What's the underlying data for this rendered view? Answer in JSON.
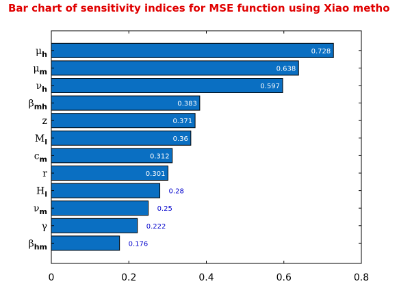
{
  "chart_data": {
    "type": "bar",
    "orientation": "horizontal",
    "title": "Bar chart of sensitivity indices for MSE function using Xiao metho",
    "categories": [
      {
        "main": "μ",
        "sub": "h"
      },
      {
        "main": "μ",
        "sub": "m"
      },
      {
        "main": "ν",
        "sub": "h"
      },
      {
        "main": "β",
        "sub": "mh"
      },
      {
        "main": "z",
        "sub": ""
      },
      {
        "main": "M",
        "sub": "l"
      },
      {
        "main": "c",
        "sub": "m"
      },
      {
        "main": "r",
        "sub": ""
      },
      {
        "main": "H",
        "sub": "l"
      },
      {
        "main": "ν",
        "sub": "m"
      },
      {
        "main": "γ",
        "sub": ""
      },
      {
        "main": "β",
        "sub": "hm"
      }
    ],
    "values": [
      0.728,
      0.638,
      0.597,
      0.383,
      0.371,
      0.36,
      0.312,
      0.301,
      0.28,
      0.25,
      0.222,
      0.176
    ],
    "value_labels": [
      "0.728",
      "0.638",
      "0.597",
      "0.383",
      "0.371",
      "0.36",
      "0.312",
      "0.301",
      "0.28",
      "0.25",
      "0.222",
      "0.176"
    ],
    "xlim": [
      0,
      0.8
    ],
    "x_ticks": [
      0,
      0.2,
      0.4,
      0.6,
      0.8
    ],
    "x_tick_labels": [
      "0",
      "0.2",
      "0.4",
      "0.6",
      "0.8"
    ],
    "xlabel": "",
    "ylabel": "",
    "grid": false,
    "legend": "none",
    "colors": {
      "bar_fill": "#0a6fc2",
      "bar_stroke": "#000000",
      "title": "#e00000",
      "label_inside": "#ffffff",
      "label_outside": "#0000cc",
      "axis": "#000000"
    }
  }
}
